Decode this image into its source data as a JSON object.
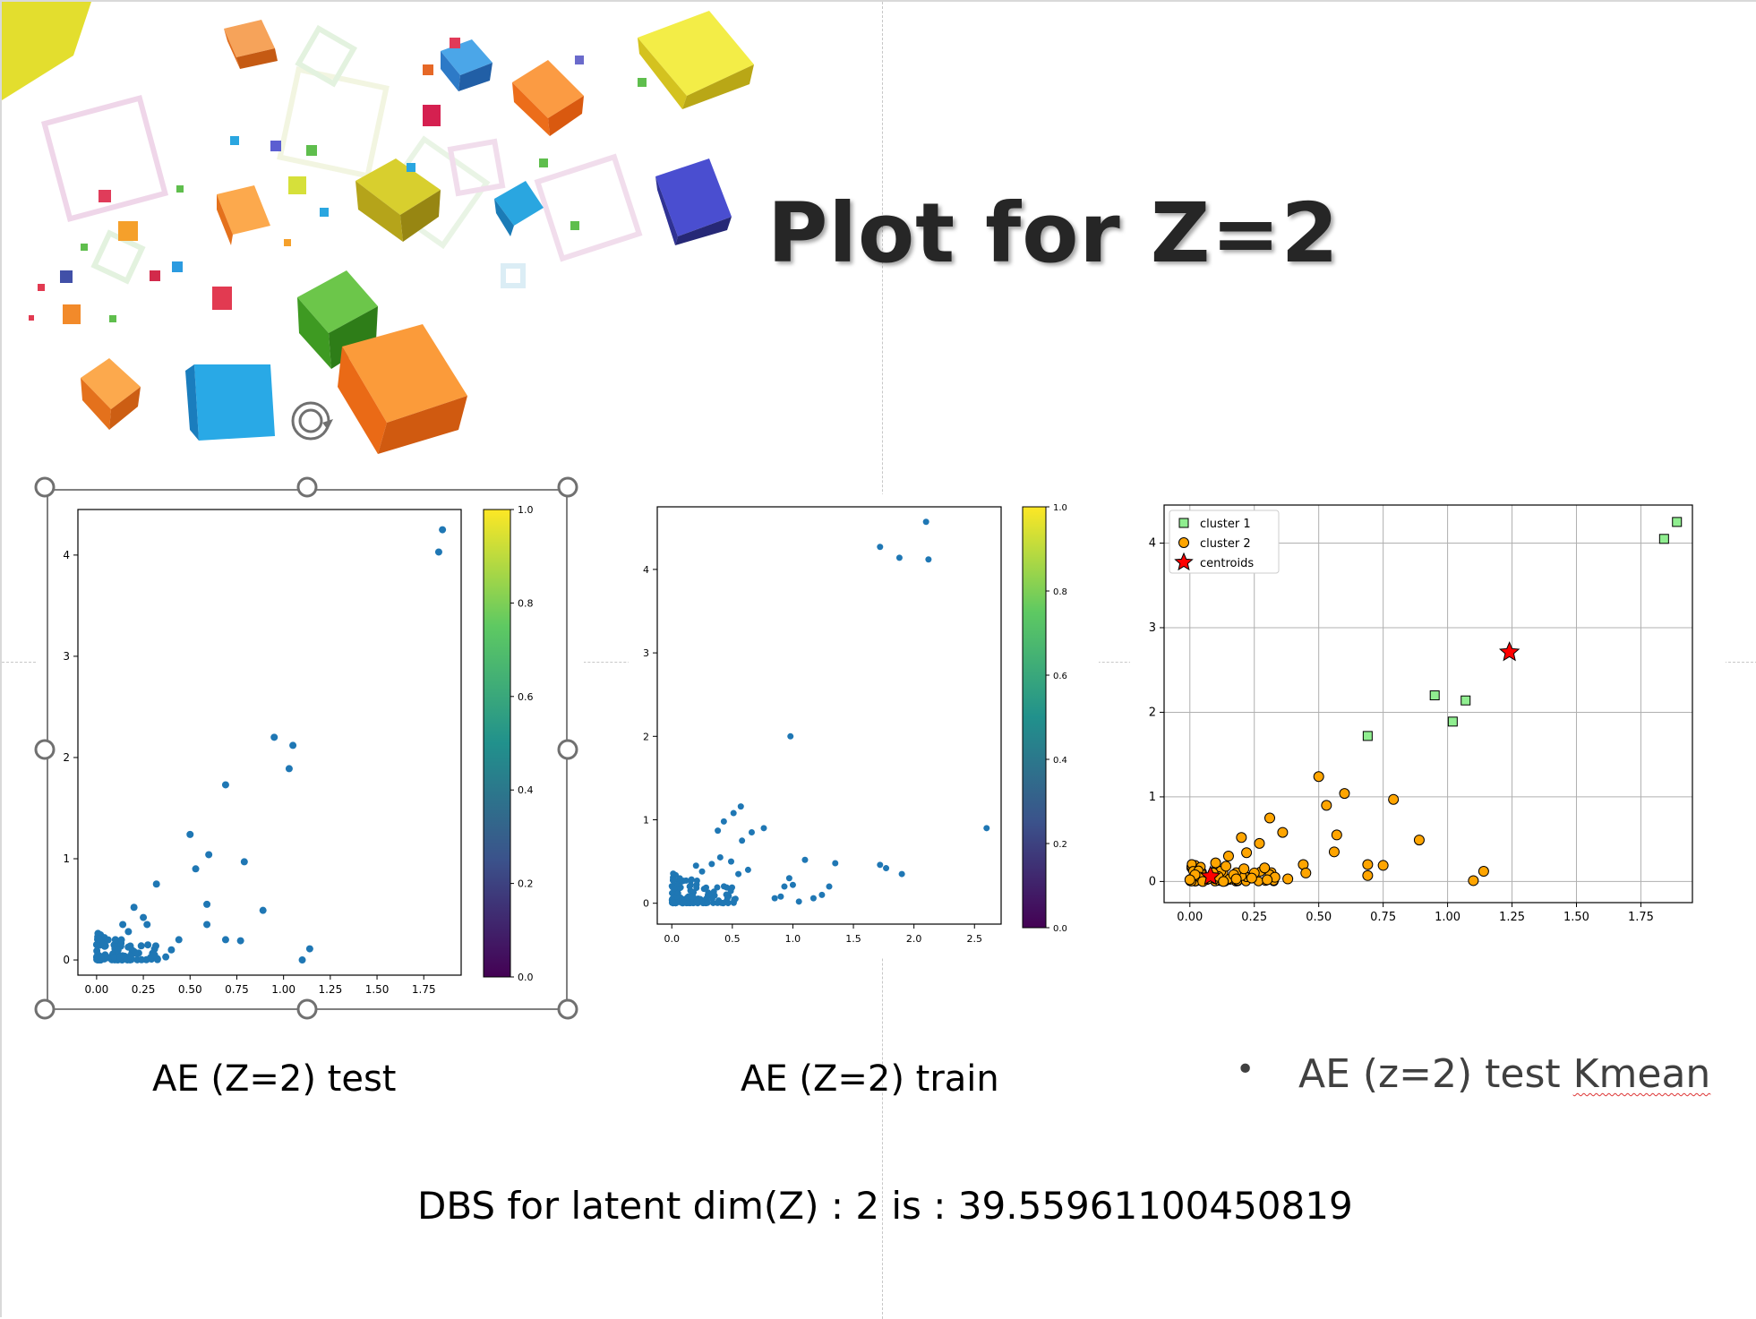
{
  "slide": {
    "title": "Plot for Z=2",
    "captions": {
      "test": "AE (Z=2) test",
      "train": "AE (Z=2) train",
      "kmean_prefix": "AE (z=2) test ",
      "kmean_word": "Kmean",
      "bullet": "•"
    },
    "dbs_text": "DBS for latent dim(Z) : 2 is : 39.55961100450819"
  },
  "colors": {
    "scatter": "#1f77b4",
    "cluster1": "#90ee90",
    "cluster2": "#ffa500",
    "centroid": "#ff0000"
  },
  "chart_data": [
    {
      "id": "test",
      "type": "scatter",
      "title": "",
      "xlabel": "",
      "ylabel": "",
      "xlim": [
        -0.1,
        1.95
      ],
      "ylim": [
        -0.15,
        4.45
      ],
      "xticks": [
        "0.00",
        "0.25",
        "0.50",
        "0.75",
        "1.00",
        "1.25",
        "1.50",
        "1.75"
      ],
      "xtick_values": [
        0,
        0.25,
        0.5,
        0.75,
        1,
        1.25,
        1.5,
        1.75
      ],
      "yticks": [
        "0",
        "1",
        "2",
        "3",
        "4"
      ],
      "ytick_values": [
        0,
        1,
        2,
        3,
        4
      ],
      "colorbar": {
        "range": [
          0,
          1
        ],
        "ticks": [
          "0.0",
          "0.2",
          "0.4",
          "0.6",
          "0.8",
          "1.0"
        ]
      },
      "points": [
        [
          1.85,
          4.25
        ],
        [
          1.83,
          4.03
        ],
        [
          0.95,
          2.2
        ],
        [
          1.05,
          2.12
        ],
        [
          1.03,
          1.89
        ],
        [
          0.69,
          1.73
        ],
        [
          0.5,
          1.24
        ],
        [
          0.6,
          1.04
        ],
        [
          0.79,
          0.97
        ],
        [
          0.53,
          0.9
        ],
        [
          0.32,
          0.75
        ],
        [
          0.59,
          0.55
        ],
        [
          0.89,
          0.49
        ],
        [
          0.59,
          0.35
        ],
        [
          0.69,
          0.2
        ],
        [
          0.77,
          0.19
        ],
        [
          1.14,
          0.11
        ],
        [
          1.1,
          0.0
        ],
        [
          0.44,
          0.2
        ],
        [
          0.27,
          0.35
        ],
        [
          0.2,
          0.52
        ],
        [
          0.25,
          0.42
        ],
        [
          0.17,
          0.28
        ],
        [
          0.14,
          0.35
        ],
        [
          0.37,
          0.03
        ],
        [
          0.31,
          0.05
        ],
        [
          0.4,
          0.1
        ]
      ],
      "cluster_note": "dense cluster near origin (x 0.0-0.4, y 0.0-0.3)"
    },
    {
      "id": "train",
      "type": "scatter",
      "title": "",
      "xlabel": "",
      "ylabel": "",
      "xlim": [
        -0.12,
        2.72
      ],
      "ylim": [
        -0.25,
        4.75
      ],
      "xticks": [
        "0.0",
        "0.5",
        "1.0",
        "1.5",
        "2.0",
        "2.5"
      ],
      "xtick_values": [
        0,
        0.5,
        1,
        1.5,
        2,
        2.5
      ],
      "yticks": [
        "0",
        "1",
        "2",
        "3",
        "4"
      ],
      "ytick_values": [
        0,
        1,
        2,
        3,
        4
      ],
      "colorbar": {
        "range": [
          0,
          1
        ],
        "ticks": [
          "0.0",
          "0.2",
          "0.4",
          "0.6",
          "0.8",
          "1.0"
        ]
      },
      "points": [
        [
          2.1,
          4.57
        ],
        [
          1.72,
          4.27
        ],
        [
          1.88,
          4.14
        ],
        [
          2.12,
          4.12
        ],
        [
          0.98,
          2.0
        ],
        [
          0.57,
          1.16
        ],
        [
          0.51,
          1.08
        ],
        [
          0.43,
          0.98
        ],
        [
          0.38,
          0.87
        ],
        [
          0.76,
          0.9
        ],
        [
          0.66,
          0.85
        ],
        [
          0.58,
          0.75
        ],
        [
          2.6,
          0.9
        ],
        [
          1.1,
          0.52
        ],
        [
          1.35,
          0.48
        ],
        [
          1.72,
          0.46
        ],
        [
          1.77,
          0.42
        ],
        [
          1.9,
          0.35
        ],
        [
          0.97,
          0.3
        ],
        [
          1.0,
          0.22
        ],
        [
          0.93,
          0.2
        ],
        [
          1.3,
          0.2
        ],
        [
          1.24,
          0.1
        ],
        [
          1.17,
          0.06
        ],
        [
          1.05,
          0.02
        ],
        [
          0.9,
          0.08
        ],
        [
          0.85,
          0.06
        ],
        [
          0.55,
          0.35
        ],
        [
          0.63,
          0.4
        ],
        [
          0.49,
          0.5
        ],
        [
          0.4,
          0.55
        ],
        [
          0.33,
          0.47
        ],
        [
          0.2,
          0.45
        ],
        [
          0.25,
          0.38
        ]
      ],
      "cluster_note": "dense cluster near origin (x 0.0-0.6, y 0.0-0.4)"
    },
    {
      "id": "kmeans",
      "type": "scatter",
      "title": "",
      "xlabel": "",
      "ylabel": "",
      "xlim": [
        -0.1,
        1.95
      ],
      "ylim": [
        -0.25,
        4.45
      ],
      "xticks": [
        "0.00",
        "0.25",
        "0.50",
        "0.75",
        "1.00",
        "1.25",
        "1.50",
        "1.75"
      ],
      "xtick_values": [
        0,
        0.25,
        0.5,
        0.75,
        1,
        1.25,
        1.5,
        1.75
      ],
      "yticks": [
        "0",
        "1",
        "2",
        "3",
        "4"
      ],
      "ytick_values": [
        0,
        1,
        2,
        3,
        4
      ],
      "grid": true,
      "legend": {
        "position": "top-left",
        "entries": [
          "cluster 1",
          "cluster 2",
          "centroids"
        ]
      },
      "series": [
        {
          "name": "cluster 1",
          "marker": "square",
          "points": [
            [
              1.89,
              4.25
            ],
            [
              1.84,
              4.05
            ],
            [
              0.95,
              2.2
            ],
            [
              1.07,
              2.14
            ],
            [
              1.02,
              1.89
            ],
            [
              0.69,
              1.72
            ]
          ]
        },
        {
          "name": "cluster 2",
          "marker": "circle",
          "points": [
            [
              0.5,
              1.24
            ],
            [
              0.6,
              1.04
            ],
            [
              0.53,
              0.9
            ],
            [
              0.79,
              0.97
            ],
            [
              0.31,
              0.75
            ],
            [
              0.36,
              0.58
            ],
            [
              0.27,
              0.45
            ],
            [
              0.2,
              0.52
            ],
            [
              0.22,
              0.34
            ],
            [
              0.15,
              0.3
            ],
            [
              0.1,
              0.22
            ],
            [
              0.57,
              0.55
            ],
            [
              0.89,
              0.49
            ],
            [
              0.56,
              0.35
            ],
            [
              0.69,
              0.2
            ],
            [
              0.75,
              0.19
            ],
            [
              1.14,
              0.12
            ],
            [
              1.1,
              0.01
            ],
            [
              0.69,
              0.07
            ],
            [
              0.44,
              0.2
            ],
            [
              0.45,
              0.1
            ],
            [
              0.33,
              0.05
            ],
            [
              0.38,
              0.03
            ],
            [
              0.04,
              0.05
            ],
            [
              0.02,
              0.08
            ],
            [
              0.07,
              0.03
            ],
            [
              0.12,
              0.12
            ],
            [
              0.17,
              0.08
            ],
            [
              0.25,
              0.1
            ],
            [
              0.29,
              0.16
            ],
            [
              0.0,
              0.02
            ],
            [
              0.05,
              0.0
            ],
            [
              0.11,
              0.06
            ],
            [
              0.14,
              0.18
            ],
            [
              0.18,
              0.03
            ],
            [
              0.21,
              0.15
            ],
            [
              0.24,
              0.04
            ],
            [
              0.09,
              0.1
            ],
            [
              0.13,
              0.0
            ],
            [
              0.3,
              0.02
            ]
          ]
        },
        {
          "name": "centroids",
          "marker": "star",
          "points": [
            [
              1.24,
              2.71
            ],
            [
              0.08,
              0.06
            ]
          ]
        }
      ],
      "cluster_note": "dense orange cluster near origin"
    }
  ]
}
